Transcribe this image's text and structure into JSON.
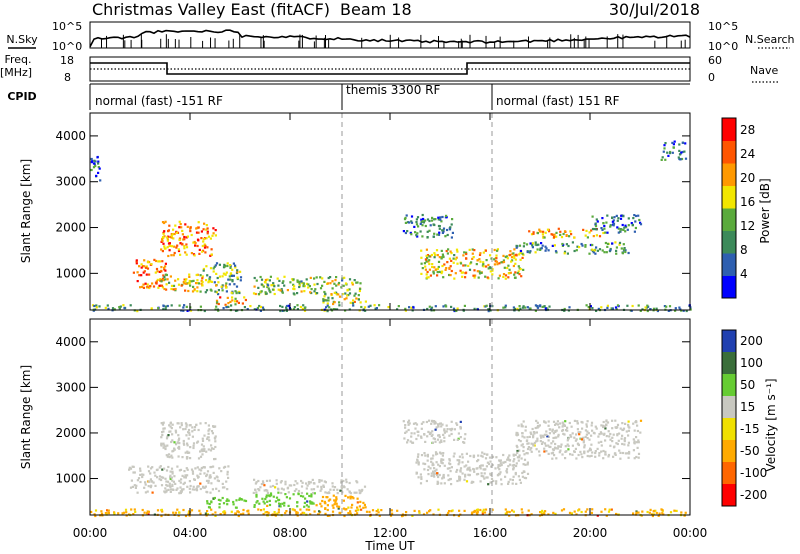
{
  "header": {
    "title": "Christmas Valley East (fitACF)",
    "beam": "Beam 18",
    "date": "30/Jul/2018"
  },
  "top_panels": {
    "nsky_label": "N.Sky",
    "nsky_ticks": [
      "10^5",
      "10^0"
    ],
    "nsearch_label": "N.Search",
    "nsearch_ticks": [
      "10^5",
      "10^0"
    ],
    "freq_label": "Freq.",
    "freq_unit": "[MHz]",
    "freq_ticks": [
      "18",
      "8"
    ],
    "nave_label": "Nave",
    "nave_ticks": [
      "60",
      "0"
    ],
    "cpid_label": "CPID",
    "cpid_segments": [
      "normal (fast) -151 RF",
      "themis 3300 RF",
      "normal (fast) 151 RF"
    ]
  },
  "colors": {
    "power": [
      "#0000ff",
      "#2e5fb0",
      "#3c8a5a",
      "#5aaa3c",
      "#f2e600",
      "#ff9900",
      "#ff5500",
      "#ff0000"
    ],
    "velocity": [
      "#2040b0",
      "#3a6e3a",
      "#66cc33",
      "#c8c8c0",
      "#f0e000",
      "#ffaa00",
      "#ff6600",
      "#ff0000"
    ]
  },
  "chart_data": [
    {
      "type": "heatmap",
      "name": "power",
      "ylabel": "Slant Range [km]",
      "ylim": [
        200,
        4500
      ],
      "yticks": [
        "1000",
        "2000",
        "3000",
        "4000"
      ],
      "xlim": [
        0,
        24
      ],
      "xticks": [
        "00:00",
        "04:00",
        "08:00",
        "12:00",
        "16:00",
        "20:00",
        "00:00"
      ],
      "colorbar_label": "Power [dB]",
      "colorbar_ticks": [
        "4",
        "8",
        "12",
        "16",
        "20",
        "24",
        "28"
      ],
      "colorbar_range": [
        0,
        30
      ],
      "blobs": [
        {
          "t0": 1.7,
          "t1": 3.0,
          "r0": 700,
          "r1": 1350,
          "level": 22
        },
        {
          "t0": 2.8,
          "t1": 5.0,
          "r0": 1400,
          "r1": 2150,
          "level": 22
        },
        {
          "t0": 2.6,
          "t1": 4.5,
          "r0": 600,
          "r1": 1000,
          "level": 18
        },
        {
          "t0": 4.4,
          "t1": 6.0,
          "r0": 550,
          "r1": 1250,
          "level": 12
        },
        {
          "t0": 5.0,
          "t1": 6.2,
          "r0": 300,
          "r1": 500,
          "level": 20
        },
        {
          "t0": 6.5,
          "t1": 10.8,
          "r0": 550,
          "r1": 950,
          "level": 14
        },
        {
          "t0": 9.2,
          "t1": 11.0,
          "r0": 350,
          "r1": 600,
          "level": 16
        },
        {
          "t0": 12.5,
          "t1": 14.5,
          "r0": 1800,
          "r1": 2300,
          "level": 8
        },
        {
          "t0": 13.2,
          "t1": 17.3,
          "r0": 900,
          "r1": 1550,
          "level": 18
        },
        {
          "t0": 17.0,
          "t1": 21.5,
          "r0": 1450,
          "r1": 1700,
          "level": 10
        },
        {
          "t0": 17.5,
          "t1": 20.5,
          "r0": 1800,
          "r1": 2000,
          "level": 20
        },
        {
          "t0": 20.0,
          "t1": 22.0,
          "r0": 1900,
          "r1": 2300,
          "level": 8
        },
        {
          "t0": 0.0,
          "t1": 0.4,
          "r0": 3000,
          "r1": 3600,
          "level": 8
        },
        {
          "t0": 22.8,
          "t1": 23.8,
          "r0": 3500,
          "r1": 3900,
          "level": 8
        },
        {
          "t0": 0.0,
          "t1": 24.0,
          "r0": 200,
          "r1": 330,
          "level": 10
        }
      ]
    },
    {
      "type": "heatmap",
      "name": "velocity",
      "ylabel": "Slant Range [km]",
      "ylim": [
        200,
        4500
      ],
      "yticks": [
        "1000",
        "2000",
        "3000",
        "4000"
      ],
      "xlim": [
        0,
        24
      ],
      "xticks": [
        "00:00",
        "04:00",
        "08:00",
        "12:00",
        "16:00",
        "20:00",
        "00:00"
      ],
      "xlabel": "Time UT",
      "colorbar_label": "Velocity [m s⁻¹]",
      "colorbar_ticks": [
        "200",
        "100",
        "50",
        "15",
        "-15",
        "-50",
        "-100",
        "-200"
      ],
      "blobs": [
        {
          "t0": 0.0,
          "t1": 24.0,
          "r0": 200,
          "r1": 350,
          "level": -60
        },
        {
          "t0": 1.5,
          "t1": 5.5,
          "r0": 700,
          "r1": 1300,
          "level": 0
        },
        {
          "t0": 2.8,
          "t1": 5.0,
          "r0": 1450,
          "r1": 2250,
          "level": 0
        },
        {
          "t0": 4.5,
          "t1": 6.2,
          "r0": 380,
          "r1": 600,
          "level": 40
        },
        {
          "t0": 6.5,
          "t1": 9.0,
          "r0": 400,
          "r1": 700,
          "level": 30
        },
        {
          "t0": 9.0,
          "t1": 11.0,
          "r0": 350,
          "r1": 650,
          "level": -70
        },
        {
          "t0": 6.5,
          "t1": 11.0,
          "r0": 700,
          "r1": 1000,
          "level": 0
        },
        {
          "t0": 12.5,
          "t1": 15.0,
          "r0": 1800,
          "r1": 2300,
          "level": 0
        },
        {
          "t0": 13.0,
          "t1": 17.5,
          "r0": 900,
          "r1": 1600,
          "level": 0
        },
        {
          "t0": 17.0,
          "t1": 22.0,
          "r0": 1450,
          "r1": 2300,
          "level": 0
        }
      ]
    }
  ]
}
